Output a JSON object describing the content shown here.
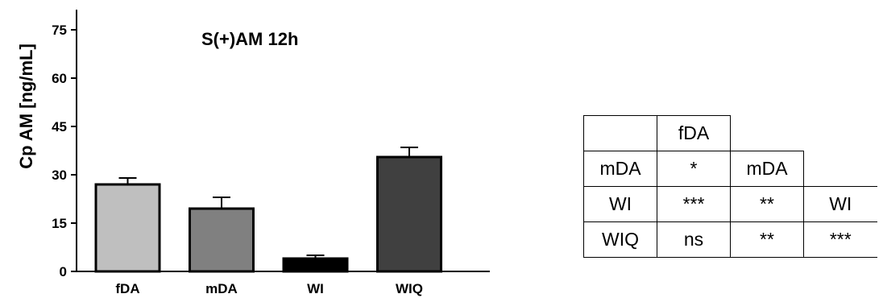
{
  "chart_data": {
    "type": "bar",
    "title": "S(+)AM 12h",
    "ylabel": "Cp AM [ng/mL]",
    "xlabel": "",
    "categories": [
      "fDA",
      "mDA",
      "WI",
      "WIQ"
    ],
    "values": [
      27,
      19.5,
      4,
      35.5
    ],
    "errors": [
      2,
      3.5,
      1,
      3
    ],
    "colors": [
      "#bfbfbf",
      "#808080",
      "#000000",
      "#404040"
    ],
    "ylim": [
      0,
      75
    ],
    "yticks": [
      "0",
      "15",
      "30",
      "45",
      "60",
      "75"
    ],
    "grid": false,
    "legend": "none"
  },
  "significance_table": {
    "header": [
      "",
      "fDA"
    ],
    "rows": [
      [
        "mDA",
        "*",
        "mDA"
      ],
      [
        "WI",
        "***",
        "**",
        "WI"
      ],
      [
        "WIQ",
        "ns",
        "**",
        "***"
      ]
    ]
  }
}
